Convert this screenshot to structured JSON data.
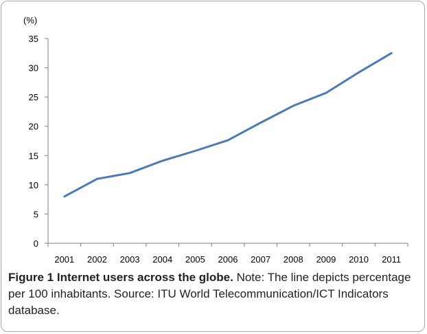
{
  "chart_data": {
    "type": "line",
    "title": "",
    "xlabel": "",
    "ylabel": "(%)",
    "x": [
      "2001",
      "2002",
      "2003",
      "2004",
      "2005",
      "2006",
      "2007",
      "2008",
      "2009",
      "2010",
      "2011"
    ],
    "series": [
      {
        "values": [
          8.0,
          11.0,
          12.0,
          14.1,
          15.8,
          17.6,
          20.6,
          23.5,
          25.7,
          29.2,
          32.5
        ],
        "color": "#4a7ab5"
      }
    ],
    "ylim": [
      0,
      35
    ],
    "yticks": [
      "0",
      "5",
      "10",
      "15",
      "20",
      "25",
      "30",
      "35"
    ],
    "grid": false,
    "legend": "none"
  },
  "caption": {
    "label": "Figure 1",
    "title": "Internet users across the globe.",
    "text": "Note: The line depicts percentage per 100 inhabitants. Source: ITU World Telecommunication/ICT Indicators database."
  }
}
